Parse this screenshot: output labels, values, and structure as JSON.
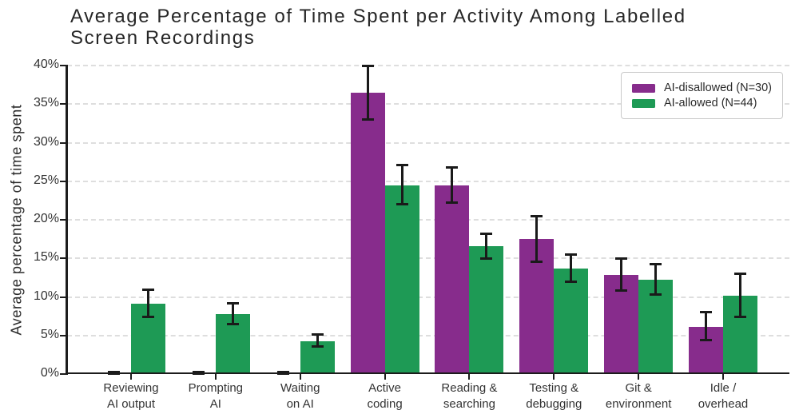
{
  "chart_data": {
    "type": "bar",
    "title": "Average Percentage of Time Spent per Activity Among Labelled Screen Recordings",
    "ylabel": "Average percentage of time spent",
    "xlabel": "",
    "ylim": [
      0,
      40
    ],
    "grid": "horizontal-dashed",
    "legend_position": "upper-right",
    "error_bars": true,
    "yticks": [
      {
        "value": 0,
        "label": "0%"
      },
      {
        "value": 5,
        "label": "5%"
      },
      {
        "value": 10,
        "label": "10%"
      },
      {
        "value": 15,
        "label": "15%"
      },
      {
        "value": 20,
        "label": "20%"
      },
      {
        "value": 25,
        "label": "25%"
      },
      {
        "value": 30,
        "label": "30%"
      },
      {
        "value": 35,
        "label": "35%"
      },
      {
        "value": 40,
        "label": "40%"
      }
    ],
    "categories": [
      "Reviewing\nAI output",
      "Prompting\nAI",
      "Waiting\non AI",
      "Active\ncoding",
      "Reading &\nsearching",
      "Testing &\ndebugging",
      "Git &\nenvironment",
      "Idle /\noverhead"
    ],
    "series": [
      {
        "name": "AI-disallowed (N=30)",
        "color": "#872c8c",
        "values": [
          0.15,
          0.15,
          0.15,
          36.5,
          24.5,
          17.5,
          12.8,
          6.1
        ],
        "err_low": [
          0.1,
          0.1,
          0.1,
          33.0,
          22.2,
          14.6,
          10.8,
          4.4
        ],
        "err_high": [
          0.25,
          0.25,
          0.25,
          40.0,
          26.8,
          20.5,
          15.0,
          8.0
        ]
      },
      {
        "name": "AI-allowed (N=44)",
        "color": "#1e9a55",
        "values": [
          9.1,
          7.8,
          4.3,
          24.5,
          16.6,
          13.7,
          12.2,
          10.2
        ],
        "err_low": [
          7.4,
          6.5,
          3.6,
          22.0,
          15.0,
          12.0,
          10.3,
          7.4
        ],
        "err_high": [
          10.9,
          9.2,
          5.1,
          27.1,
          18.2,
          15.5,
          14.2,
          13.0
        ]
      }
    ]
  }
}
